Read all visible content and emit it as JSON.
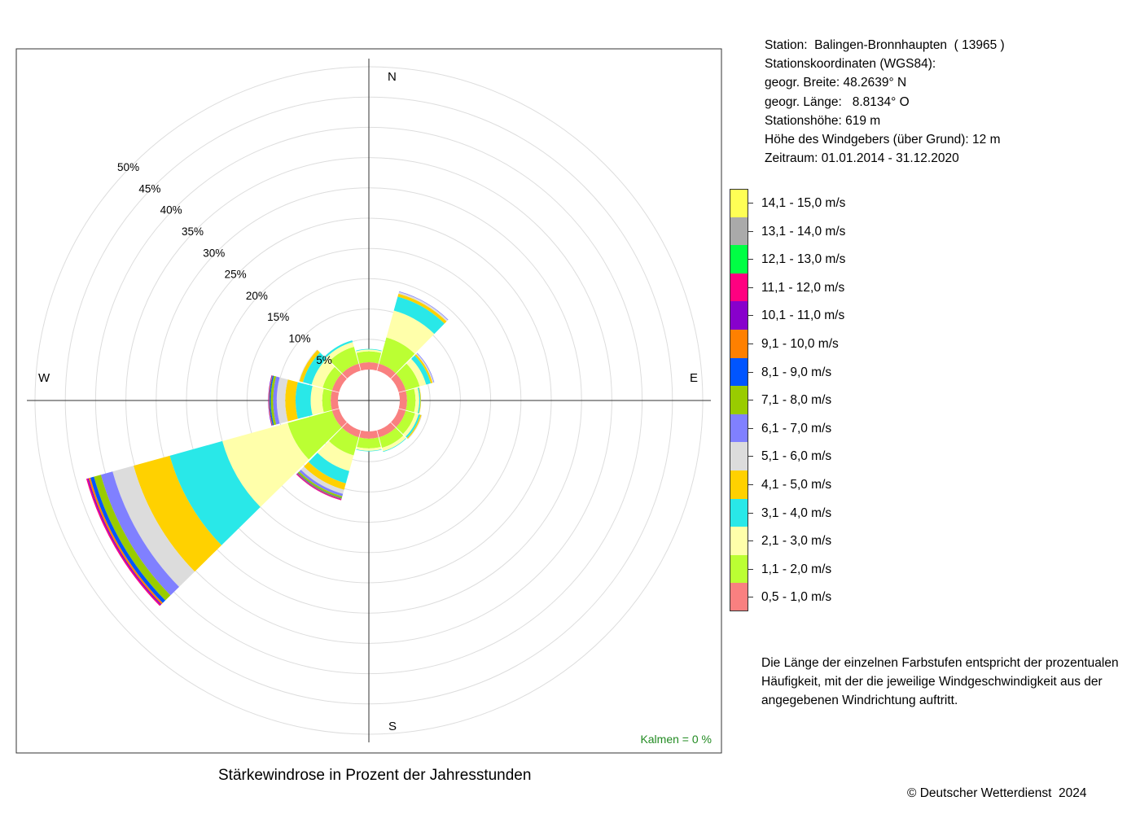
{
  "title": "Stärkewindrose in Prozent der Jahresstunden",
  "station_info": [
    "Station:  Balingen-Bronnhaupten  ( 13965 )",
    "Stationskoordinaten (WGS84):",
    "geogr. Breite: 48.2639° N",
    "geogr. Länge:   8.8134° O",
    "Stationshöhe: 619 m",
    "Höhe des Windgebers (über Grund): 12 m",
    "Zeitraum: 01.01.2014 - 31.12.2020"
  ],
  "explanation": "Die Länge der einzelnen Farbstufen entspricht der prozentualen Häufigkeit, mit der die jeweilige Windgeschwindigkeit aus der angegebenen Windrichtung auftritt.",
  "copyright": "© Deutscher Wetterdienst  2024",
  "calm_label": "Kalmen  =  0 %",
  "compass": {
    "north": "N",
    "south": "S",
    "east": "E",
    "west": "W"
  },
  "chart_data": {
    "type": "wind-rose",
    "title": "Stärkewindrose in Prozent der Jahresstunden",
    "unit": "%",
    "radial_ticks": [
      5,
      10,
      15,
      20,
      25,
      30,
      35,
      40,
      45,
      50
    ],
    "radial_tick_labels": [
      "5%",
      "10%",
      "15%",
      "20%",
      "25%",
      "30%",
      "35%",
      "40%",
      "45%",
      "50%"
    ],
    "calm_percent": 0,
    "directions_deg": [
      0,
      30,
      60,
      90,
      120,
      150,
      180,
      210,
      240,
      270,
      300,
      330
    ],
    "speed_classes": [
      {
        "label": "0,5 - 1,0 m/s",
        "color": "#f98080"
      },
      {
        "label": "1,1 - 2,0 m/s",
        "color": "#bbff33"
      },
      {
        "label": "2,1 - 3,0 m/s",
        "color": "#ffffaa"
      },
      {
        "label": "3,1 - 4,0 m/s",
        "color": "#29e8e8"
      },
      {
        "label": "4,1 - 5,0 m/s",
        "color": "#ffd100"
      },
      {
        "label": "5,1 - 6,0 m/s",
        "color": "#dcdcdc"
      },
      {
        "label": "6,1 - 7,0 m/s",
        "color": "#8080ff"
      },
      {
        "label": "7,1 - 8,0 m/s",
        "color": "#99cc00"
      },
      {
        "label": "8,1 - 9,0 m/s",
        "color": "#0055ff"
      },
      {
        "label": "9,1 - 10,0 m/s",
        "color": "#ff8000"
      },
      {
        "label": "10,1 - 11,0 m/s",
        "color": "#8800cc"
      },
      {
        "label": "11,1 - 12,0 m/s",
        "color": "#ff0080"
      },
      {
        "label": "12,1 - 13,0 m/s",
        "color": "#00ff44"
      },
      {
        "label": "13,1 - 14,0 m/s",
        "color": "#aaaaaa"
      },
      {
        "label": "14,1 - 15,0 m/s",
        "color": "#ffff55"
      }
    ],
    "frequencies": [
      [
        1.2,
        1.8,
        0.3,
        0.1,
        0,
        0,
        0,
        0,
        0,
        0,
        0,
        0,
        0,
        0,
        0
      ],
      [
        1.2,
        4.5,
        4.6,
        2.4,
        0.5,
        0.3,
        0.1,
        0,
        0,
        0,
        0,
        0,
        0,
        0,
        0
      ],
      [
        1.2,
        2.4,
        1.1,
        0.8,
        0.3,
        0.2,
        0.1,
        0,
        0,
        0,
        0,
        0,
        0,
        0,
        0
      ],
      [
        1.2,
        1.4,
        0.6,
        0.2,
        0.1,
        0,
        0,
        0,
        0,
        0,
        0,
        0,
        0,
        0,
        0
      ],
      [
        1.2,
        1.6,
        0.6,
        0.3,
        0.2,
        0.1,
        0,
        0,
        0,
        0,
        0,
        0,
        0,
        0,
        0
      ],
      [
        1.2,
        1.8,
        0.6,
        0.1,
        0,
        0,
        0,
        0,
        0,
        0,
        0,
        0,
        0,
        0,
        0
      ],
      [
        1.2,
        1.6,
        0.4,
        0.1,
        0,
        0,
        0,
        0,
        0,
        0,
        0,
        0,
        0,
        0,
        0
      ],
      [
        1.2,
        3.1,
        2.7,
        2.1,
        1.1,
        0.7,
        0.4,
        0.3,
        0.1,
        0.1,
        0.1,
        0.1,
        0,
        0,
        0
      ],
      [
        1.2,
        7.6,
        11.2,
        9.0,
        6.2,
        3.6,
        2.0,
        1.2,
        0.6,
        0.3,
        0.2,
        0.2,
        0,
        0,
        0
      ],
      [
        1.2,
        1.4,
        1.9,
        2.5,
        1.7,
        1.4,
        0.6,
        0.4,
        0.2,
        0.1,
        0.1,
        0,
        0,
        0,
        0
      ],
      [
        1.2,
        1.6,
        1.9,
        1.5,
        0.6,
        0.1,
        0,
        0,
        0,
        0,
        0,
        0,
        0,
        0,
        0
      ],
      [
        1.2,
        2.9,
        0.8,
        0.3,
        0,
        0,
        0,
        0,
        0,
        0,
        0,
        0,
        0,
        0,
        0
      ]
    ]
  }
}
